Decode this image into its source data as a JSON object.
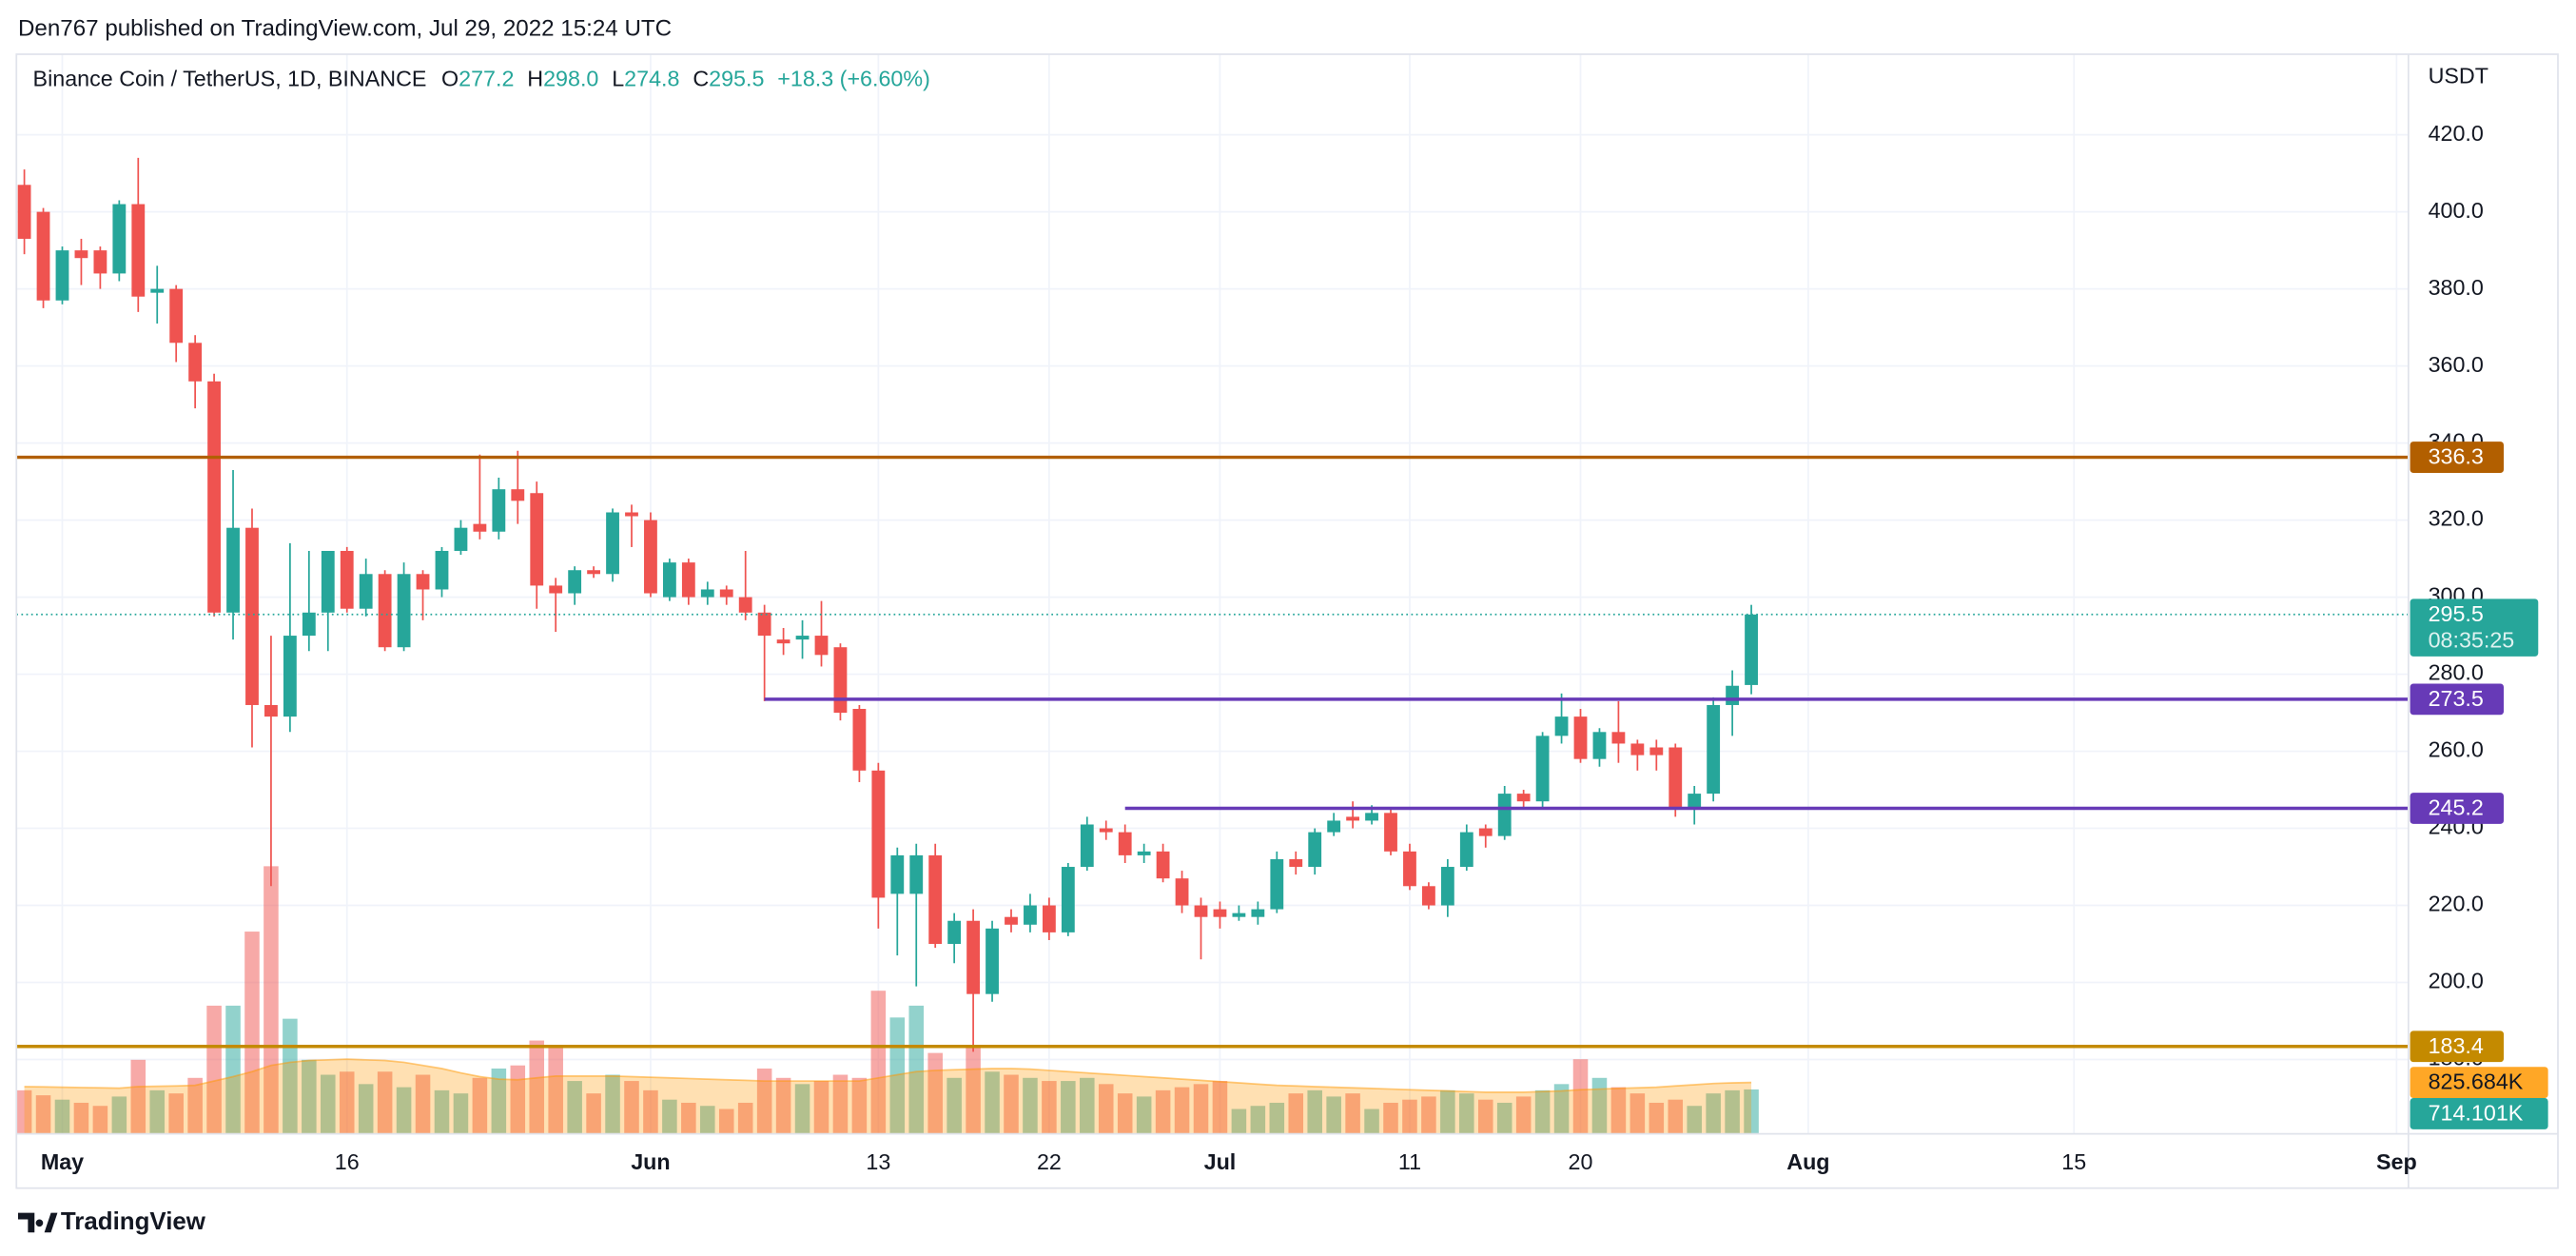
{
  "header": "Den767 published on TradingView.com, Jul 29, 2022 15:24 UTC",
  "footer": "TradingView",
  "chart_data": {
    "type": "candlestick",
    "legend": {
      "symbol": "Binance Coin / TetherUS, 1D, BINANCE",
      "o_label": "O",
      "o": "277.2",
      "h_label": "H",
      "h": "298.0",
      "l_label": "L",
      "l": "274.8",
      "c_label": "C",
      "c": "295.5",
      "change": "+18.3 (+6.60%)"
    },
    "y_unit": "USDT",
    "categories": [
      "2022-04-29",
      "2022-04-30",
      "2022-05-01",
      "2022-05-02",
      "2022-05-03",
      "2022-05-04",
      "2022-05-05",
      "2022-05-06",
      "2022-05-07",
      "2022-05-08",
      "2022-05-09",
      "2022-05-10",
      "2022-05-11",
      "2022-05-12",
      "2022-05-13",
      "2022-05-14",
      "2022-05-15",
      "2022-05-16",
      "2022-05-17",
      "2022-05-18",
      "2022-05-19",
      "2022-05-20",
      "2022-05-21",
      "2022-05-22",
      "2022-05-23",
      "2022-05-24",
      "2022-05-25",
      "2022-05-26",
      "2022-05-27",
      "2022-05-28",
      "2022-05-29",
      "2022-05-30",
      "2022-05-31",
      "2022-06-01",
      "2022-06-02",
      "2022-06-03",
      "2022-06-04",
      "2022-06-05",
      "2022-06-06",
      "2022-06-07",
      "2022-06-08",
      "2022-06-09",
      "2022-06-10",
      "2022-06-11",
      "2022-06-12",
      "2022-06-13",
      "2022-06-14",
      "2022-06-15",
      "2022-06-16",
      "2022-06-17",
      "2022-06-18",
      "2022-06-19",
      "2022-06-20",
      "2022-06-21",
      "2022-06-22",
      "2022-06-23",
      "2022-06-24",
      "2022-06-25",
      "2022-06-26",
      "2022-06-27",
      "2022-06-28",
      "2022-06-29",
      "2022-06-30",
      "2022-07-01",
      "2022-07-02",
      "2022-07-03",
      "2022-07-04",
      "2022-07-05",
      "2022-07-06",
      "2022-07-07",
      "2022-07-08",
      "2022-07-09",
      "2022-07-10",
      "2022-07-11",
      "2022-07-12",
      "2022-07-13",
      "2022-07-14",
      "2022-07-15",
      "2022-07-16",
      "2022-07-17",
      "2022-07-18",
      "2022-07-19",
      "2022-07-20",
      "2022-07-21",
      "2022-07-22",
      "2022-07-23",
      "2022-07-24",
      "2022-07-25",
      "2022-07-26",
      "2022-07-27",
      "2022-07-28",
      "2022-07-29"
    ],
    "open": [
      407,
      400,
      377,
      390,
      390,
      384,
      402,
      379,
      380,
      366,
      356,
      296,
      318,
      272,
      269,
      290,
      296,
      312,
      297,
      306,
      287,
      306,
      302,
      312,
      319,
      317,
      328,
      327,
      303,
      301,
      307,
      306,
      322,
      320,
      300,
      309,
      300,
      302,
      300,
      296,
      289,
      289,
      290,
      287,
      271,
      255,
      223,
      223,
      233,
      210,
      216,
      197,
      217,
      215,
      220,
      213,
      230,
      240,
      239,
      233,
      234,
      227,
      220,
      219,
      217,
      217,
      219,
      232,
      230,
      239,
      243,
      242,
      244,
      234,
      225,
      220,
      230,
      240,
      238,
      249,
      247,
      264,
      269,
      258,
      265,
      262,
      261,
      261,
      245,
      249,
      272,
      277.2
    ],
    "high": [
      411,
      401,
      391,
      393,
      391,
      403,
      414,
      386,
      381,
      368,
      358,
      333,
      323,
      290,
      314,
      312,
      312,
      313,
      310,
      307,
      309,
      307,
      313,
      320,
      337,
      331,
      338,
      330,
      305,
      308,
      308,
      323,
      324,
      322,
      310,
      310,
      304,
      303,
      312,
      298,
      292,
      294,
      299,
      288,
      272,
      257,
      235,
      236,
      236,
      218,
      219,
      216,
      219,
      223,
      222,
      231,
      243,
      242,
      241,
      236,
      236,
      229,
      222,
      221,
      220,
      221,
      234,
      234,
      240,
      244,
      247,
      246,
      245,
      236,
      226,
      232,
      241,
      241,
      251,
      250,
      265,
      275,
      271,
      266,
      273,
      263,
      263,
      262,
      251,
      274,
      281,
      298
    ],
    "low": [
      389,
      375,
      376,
      381,
      380,
      382,
      374,
      371,
      361,
      349,
      295,
      289,
      261,
      225,
      265,
      286,
      286,
      296,
      295,
      286,
      286,
      294,
      300,
      311,
      315,
      315,
      319,
      297,
      291,
      298,
      305,
      304,
      313,
      300,
      299,
      298,
      298,
      298,
      294,
      273,
      285,
      284,
      282,
      268,
      252,
      214,
      207,
      199,
      209,
      205,
      182,
      195,
      213,
      213,
      211,
      212,
      229,
      237,
      231,
      231,
      226,
      218,
      206,
      214,
      216,
      215,
      218,
      228,
      228,
      238,
      240,
      241,
      233,
      224,
      219,
      217,
      229,
      235,
      237,
      245,
      245,
      262,
      257,
      256,
      257,
      255,
      255,
      243,
      241,
      247,
      264,
      274.8
    ],
    "close": [
      393,
      377,
      390,
      388,
      384,
      402,
      378,
      380,
      366,
      356,
      296,
      318,
      272,
      269,
      290,
      296,
      312,
      297,
      306,
      287,
      306,
      302,
      312,
      318,
      317,
      328,
      325,
      303,
      301,
      307,
      306,
      322,
      321,
      301,
      309,
      300,
      302,
      300,
      296,
      290,
      288,
      290,
      285,
      270,
      255,
      222,
      233,
      233,
      210,
      216,
      197,
      214,
      215,
      220,
      213,
      230,
      241,
      239,
      233,
      234,
      227,
      220,
      217,
      217,
      218,
      219,
      232,
      230,
      239,
      242,
      242,
      244,
      234,
      225,
      220,
      230,
      239,
      238,
      249,
      247,
      264,
      269,
      258,
      265,
      262,
      259,
      259,
      245,
      249,
      272,
      277,
      295.5
    ],
    "up_color": "#26a69a",
    "down_color": "#ef5350",
    "volume": {
      "values": [
        700,
        620,
        550,
        500,
        450,
        600,
        1190,
        700,
        650,
        900,
        2060,
        2060,
        3250,
        4300,
        1850,
        1190,
        950,
        1000,
        800,
        1000,
        750,
        950,
        700,
        650,
        900,
        1050,
        1100,
        1500,
        1400,
        850,
        650,
        950,
        850,
        700,
        550,
        500,
        450,
        400,
        500,
        1050,
        900,
        800,
        850,
        950,
        900,
        2300,
        1870,
        2060,
        1300,
        900,
        1400,
        1000,
        950,
        900,
        850,
        850,
        900,
        800,
        650,
        600,
        700,
        750,
        800,
        850,
        400,
        450,
        500,
        650,
        700,
        600,
        650,
        400,
        500,
        550,
        600,
        700,
        650,
        550,
        500,
        600,
        700,
        800,
        1200,
        900,
        750,
        650,
        500,
        550,
        450,
        650,
        700,
        714.101
      ],
      "last_label": "714.101K",
      "ma": [
        760,
        755,
        750,
        745,
        740,
        735,
        760,
        765,
        770,
        780,
        850,
        920,
        1000,
        1100,
        1150,
        1180,
        1190,
        1200,
        1190,
        1180,
        1150,
        1100,
        1050,
        980,
        920,
        880,
        870,
        900,
        930,
        930,
        930,
        930,
        920,
        910,
        900,
        890,
        880,
        870,
        860,
        850,
        850,
        850,
        850,
        850,
        850,
        900,
        950,
        1000,
        1020,
        1030,
        1040,
        1050,
        1050,
        1040,
        1020,
        1000,
        980,
        960,
        940,
        920,
        900,
        880,
        860,
        840,
        820,
        800,
        780,
        770,
        760,
        750,
        740,
        730,
        720,
        710,
        700,
        690,
        680,
        670,
        670,
        670,
        680,
        690,
        710,
        720,
        730,
        740,
        750,
        770,
        790,
        810,
        820,
        825.684
      ],
      "ma_label": "825.684K",
      "ma_color": "#ff9800"
    },
    "ylim": [
      160.7,
      440.9
    ],
    "yticks": [
      {
        "value": 180,
        "label": "180.0"
      },
      {
        "value": 200,
        "label": "200.0"
      },
      {
        "value": 220,
        "label": "220.0"
      },
      {
        "value": 240,
        "label": "240.0"
      },
      {
        "value": 260,
        "label": "260.0"
      },
      {
        "value": 280,
        "label": "280.0"
      },
      {
        "value": 300,
        "label": "300.0"
      },
      {
        "value": 320,
        "label": "320.0"
      },
      {
        "value": 340,
        "label": "340.0"
      },
      {
        "value": 360,
        "label": "360.0"
      },
      {
        "value": 380,
        "label": "380.0"
      },
      {
        "value": 400,
        "label": "400.0"
      },
      {
        "value": 420,
        "label": "420.0"
      }
    ],
    "xlim": [
      "2022-04-28T14:00:00Z",
      "2022-09-01T15:00:00Z"
    ],
    "xticks": [
      {
        "value": "2022-05-01",
        "label": "May"
      },
      {
        "value": "2022-05-16",
        "label": "16"
      },
      {
        "value": "2022-06-01",
        "label": "Jun"
      },
      {
        "value": "2022-06-13",
        "label": "13"
      },
      {
        "value": "2022-06-22",
        "label": "22"
      },
      {
        "value": "2022-07-01",
        "label": "Jul"
      },
      {
        "value": "2022-07-11",
        "label": "11"
      },
      {
        "value": "2022-07-20",
        "label": "20"
      },
      {
        "value": "2022-08-01",
        "label": "Aug"
      },
      {
        "value": "2022-08-15",
        "label": "15"
      },
      {
        "value": "2022-09-01",
        "label": "Sep"
      }
    ],
    "grid": true,
    "levels": [
      {
        "value": 336.3,
        "color": "#b25f00"
      },
      {
        "value": 273.5,
        "color": "#673ab7",
        "start": "2022-06-07"
      },
      {
        "value": 245.2,
        "color": "#673ab7",
        "start": "2022-06-26"
      },
      {
        "value": 183.4,
        "color": "#c48a00"
      }
    ],
    "last_price": 295.5,
    "countdown": "08:35:25"
  }
}
